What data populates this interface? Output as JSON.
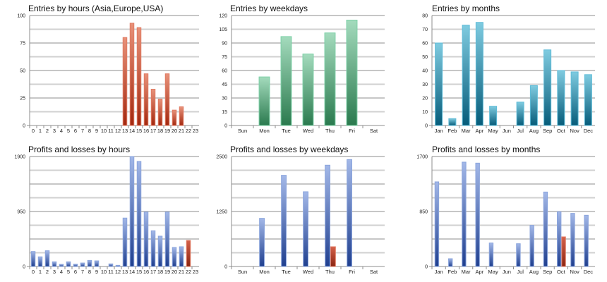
{
  "chart_data": [
    {
      "id": "entries-hours",
      "type": "bar",
      "title": "Entries by hours (Asia,Europe,USA)",
      "categories": [
        "0",
        "1",
        "2",
        "3",
        "4",
        "5",
        "6",
        "7",
        "8",
        "9",
        "10",
        "11",
        "12",
        "13",
        "14",
        "15",
        "16",
        "17",
        "18",
        "19",
        "20",
        "21",
        "22",
        "23"
      ],
      "series": [
        {
          "name": "Entries",
          "color": "#c0502f",
          "values": [
            0,
            0,
            0,
            0,
            0,
            0,
            0,
            0,
            0,
            0,
            0,
            0,
            0,
            80,
            93,
            89,
            47,
            33,
            24,
            47,
            14,
            17,
            0,
            0
          ]
        }
      ],
      "ylim": [
        0,
        100
      ],
      "yticks": [
        0,
        25,
        50,
        75,
        100
      ],
      "minor_gridlines": true,
      "grid": true,
      "legend": "none"
    },
    {
      "id": "entries-weekdays",
      "type": "bar",
      "title": "Entries by weekdays",
      "categories": [
        "Sun",
        "Mon",
        "Tue",
        "Wed",
        "Thu",
        "Fri",
        "Sat"
      ],
      "series": [
        {
          "name": "Entries",
          "color": "#3a9467",
          "values": [
            0,
            53,
            97,
            78,
            101,
            115,
            0
          ]
        }
      ],
      "ylim": [
        0,
        120
      ],
      "yticks": [
        0,
        15,
        30,
        45,
        60,
        75,
        90,
        105,
        120
      ],
      "minor_gridlines": false,
      "grid": true,
      "legend": "none"
    },
    {
      "id": "entries-months",
      "type": "bar",
      "title": "Entries by months",
      "categories": [
        "Jan",
        "Feb",
        "Mar",
        "Apr",
        "May",
        "Jun",
        "Jul",
        "Aug",
        "Sep",
        "Oct",
        "Nov",
        "Dec"
      ],
      "series": [
        {
          "name": "Entries",
          "color": "#1f7c9a",
          "values": [
            60,
            5,
            73,
            75,
            14,
            0,
            17,
            29,
            55,
            40,
            39,
            37
          ]
        }
      ],
      "ylim": [
        0,
        80
      ],
      "yticks": [
        0,
        10,
        20,
        30,
        40,
        50,
        60,
        70,
        80
      ],
      "minor_gridlines": false,
      "grid": true,
      "legend": "none"
    },
    {
      "id": "pl-hours",
      "type": "bar",
      "title": "Profits and losses by hours",
      "categories": [
        "0",
        "1",
        "2",
        "3",
        "4",
        "5",
        "6",
        "7",
        "8",
        "9",
        "10",
        "11",
        "12",
        "13",
        "14",
        "15",
        "16",
        "17",
        "18",
        "19",
        "20",
        "21",
        "22",
        "23"
      ],
      "series": [
        {
          "name": "Profits",
          "color": "#4a6fbf",
          "values": [
            259,
            167,
            272,
            81,
            37,
            81,
            40,
            60,
            105,
            97,
            0,
            45,
            20,
            837,
            1900,
            1815,
            941,
            617,
            524,
            941,
            329,
            341,
            0,
            0
          ]
        },
        {
          "name": "Losses",
          "color": "#c0402a",
          "values": [
            0,
            0,
            0,
            0,
            0,
            0,
            0,
            0,
            0,
            0,
            0,
            0,
            0,
            0,
            0,
            0,
            0,
            0,
            0,
            0,
            0,
            0,
            450,
            0
          ]
        }
      ],
      "ylim": [
        0,
        1900
      ],
      "yticks": [
        0,
        950,
        1900
      ],
      "gridlines": 8,
      "grid": true,
      "legend": "none"
    },
    {
      "id": "pl-weekdays",
      "type": "bar",
      "title": "Profits and losses by weekdays",
      "categories": [
        "Sun",
        "Mon",
        "Tue",
        "Wed",
        "Thu",
        "Fri",
        "Sat"
      ],
      "series": [
        {
          "name": "Profits",
          "color": "#4a6fbf",
          "values": [
            0,
            1095,
            2073,
            1699,
            2303,
            2431,
            0
          ]
        },
        {
          "name": "Losses",
          "color": "#c0402a",
          "values": [
            0,
            0,
            0,
            0,
            449,
            0,
            0
          ]
        }
      ],
      "ylim": [
        0,
        2500
      ],
      "yticks": [
        0,
        1250,
        2500
      ],
      "gridlines": 8,
      "grid": true,
      "legend": "none"
    },
    {
      "id": "pl-months",
      "type": "bar",
      "title": "Profits and losses by months",
      "categories": [
        "Jan",
        "Feb",
        "Mar",
        "Apr",
        "May",
        "Jun",
        "Jul",
        "Aug",
        "Sep",
        "Oct",
        "Nov",
        "Dec"
      ],
      "series": [
        {
          "name": "Profits",
          "color": "#4a6fbf",
          "values": [
            1308,
            120,
            1613,
            1598,
            363,
            0,
            352,
            636,
            1151,
            846,
            821,
            792
          ]
        },
        {
          "name": "Losses",
          "color": "#c0402a",
          "values": [
            0,
            0,
            0,
            0,
            0,
            0,
            0,
            0,
            0,
            458,
            0,
            0
          ]
        }
      ],
      "ylim": [
        0,
        1700
      ],
      "yticks": [
        0,
        850,
        1700
      ],
      "gridlines": 8,
      "grid": true,
      "legend": "none"
    }
  ]
}
